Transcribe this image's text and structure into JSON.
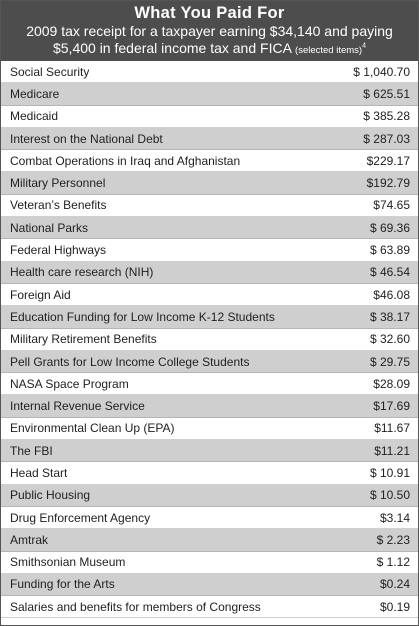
{
  "header": {
    "title": "What You Paid For",
    "subtitle_line1": "2009 tax receipt for a taxpayer earning $34,140 and paying",
    "subtitle_line2": "$5,400 in federal income tax and FICA",
    "subtitle_note": "(selected items)",
    "footnote_marker": "4",
    "background_color": "#4d4d4d"
  },
  "rows": [
    {
      "label": "Social Security",
      "amount": "$ 1,040.70"
    },
    {
      "label": "Medicare",
      "amount": "$ 625.51"
    },
    {
      "label": "Medicaid",
      "amount": "$ 385.28"
    },
    {
      "label": "Interest on the National Debt",
      "amount": "$ 287.03"
    },
    {
      "label": "Combat Operations in Iraq and Afghanistan",
      "amount": "$229.17"
    },
    {
      "label": "Military Personnel",
      "amount": "$192.79"
    },
    {
      "label": "Veteran’s Benefits",
      "amount": "$74.65"
    },
    {
      "label": "National Parks",
      "amount": "$ 69.36"
    },
    {
      "label": "Federal Highways",
      "amount": "$ 63.89"
    },
    {
      "label": "Health care research (NIH)",
      "amount": "$ 46.54"
    },
    {
      "label": "Foreign Aid",
      "amount": "$46.08"
    },
    {
      "label": "Education Funding for Low Income K-12 Students",
      "amount": "$ 38.17"
    },
    {
      "label": "Military Retirement Benefits",
      "amount": "$ 32.60"
    },
    {
      "label": "Pell Grants for Low Income College Students",
      "amount": "$ 29.75"
    },
    {
      "label": "NASA Space Program",
      "amount": "$28.09"
    },
    {
      "label": "Internal Revenue Service",
      "amount": "$17.69"
    },
    {
      "label": "Environmental Clean Up (EPA)",
      "amount": "$11.67"
    },
    {
      "label": "The FBI",
      "amount": "$11.21"
    },
    {
      "label": "Head Start",
      "amount": "$ 10.91"
    },
    {
      "label": "Public Housing",
      "amount": "$ 10.50"
    },
    {
      "label": "Drug Enforcement Agency",
      "amount": "$3.14"
    },
    {
      "label": "Amtrak",
      "amount": "$ 2.23"
    },
    {
      "label": "Smithsonian Museum",
      "amount": "$ 1.12"
    },
    {
      "label": "Funding for the Arts",
      "amount": "$0.24"
    },
    {
      "label": "Salaries and benefits for members of Congress",
      "amount": "$0.19"
    }
  ],
  "colors": {
    "shaded_row": "#cfcfcf",
    "plain_row": "#ffffff"
  }
}
